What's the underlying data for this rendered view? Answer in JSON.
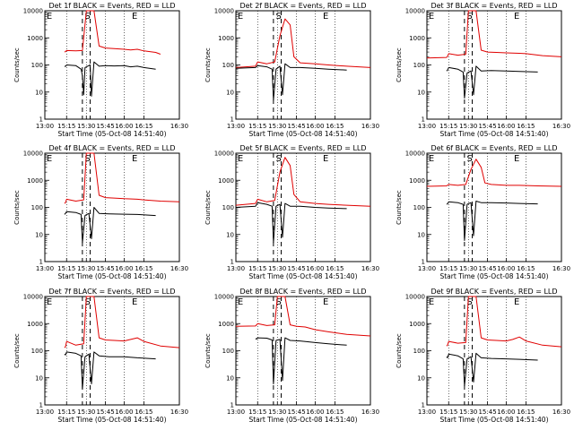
{
  "figure": {
    "background": "#ffffff",
    "axis_color": "#000000",
    "events_color": "#000000",
    "lld_color": "#e00000"
  },
  "chart_data": [
    {
      "type": "line",
      "title": "Det 1f BLACK = Events, RED = LLD",
      "xlabel": "Start Time (05-Oct-08 14:51:40)",
      "ylabel": "Counts/sec",
      "xlim": [
        "13:00",
        "16:30"
      ],
      "ylim": [
        1,
        10000
      ],
      "yscale": "log",
      "x_ticks": [
        "13:00",
        "15:15",
        "15:30",
        "15:45",
        "16:00",
        "16:15",
        "16:30"
      ],
      "y_ticks": [
        "1",
        "10",
        "100",
        "1000",
        "10000"
      ],
      "markers": [
        "E",
        "S",
        "E"
      ],
      "series": [
        {
          "name": "LLD",
          "x": [
            "15:02",
            "15:08",
            "15:15",
            "15:22",
            "15:27",
            "15:30",
            "15:32",
            "15:36",
            "15:40",
            "15:45",
            "15:52",
            "16:00",
            "16:05",
            "16:10",
            "16:15",
            "16:20",
            "16:22"
          ],
          "values": [
            300,
            310,
            340,
            330,
            340,
            10000,
            10000,
            10000,
            500,
            420,
            400,
            380,
            360,
            380,
            330,
            290,
            250
          ]
        },
        {
          "name": "Events",
          "x": [
            "15:02",
            "15:08",
            "15:15",
            "15:22",
            "15:26",
            "15:27",
            "15:28",
            "15:29",
            "15:31",
            "15:33",
            "15:34",
            "15:36",
            "15:40",
            "15:45",
            "15:52",
            "16:00",
            "16:05",
            "16:10",
            "16:15",
            "16:20"
          ],
          "values": [
            90,
            88,
            100,
            95,
            70,
            40,
            8,
            80,
            90,
            100,
            7,
            130,
            90,
            95,
            92,
            95,
            85,
            90,
            80,
            70
          ]
        }
      ]
    },
    {
      "type": "line",
      "title": "Det 2f BLACK = Events, RED = LLD",
      "xlabel": "Start Time (05-Oct-08 14:51:40)",
      "ylabel": "Counts/sec",
      "xlim": [
        "13:00",
        "16:30"
      ],
      "ylim": [
        1,
        10000
      ],
      "yscale": "log",
      "x_ticks": [
        "13:00",
        "15:15",
        "15:30",
        "15:45",
        "16:00",
        "16:15",
        "16:30"
      ],
      "y_ticks": [
        "1",
        "10",
        "100",
        "1000",
        "10000"
      ],
      "markers": [
        "E",
        "S",
        "E"
      ],
      "series": [
        {
          "name": "LLD",
          "x": [
            "13:00",
            "15:02",
            "15:15",
            "15:22",
            "15:28",
            "15:32",
            "15:36",
            "15:40",
            "15:43",
            "15:48",
            "16:00",
            "16:10",
            "16:20",
            "16:30"
          ],
          "values": [
            80,
            90,
            130,
            110,
            130,
            1200,
            5000,
            3000,
            200,
            120,
            110,
            100,
            90,
            80
          ]
        },
        {
          "name": "Events",
          "x": [
            "13:00",
            "15:02",
            "15:15",
            "15:22",
            "15:26",
            "15:27",
            "15:29",
            "15:32",
            "15:34",
            "15:36",
            "15:40",
            "15:48",
            "16:00",
            "16:10",
            "16:20"
          ],
          "values": [
            75,
            80,
            95,
            85,
            70,
            5,
            70,
            90,
            8,
            110,
            80,
            80,
            75,
            70,
            65
          ]
        }
      ]
    },
    {
      "type": "line",
      "title": "Det 3f BLACK = Events, RED = LLD",
      "xlabel": "Start Time (05-Oct-08 14:51:40)",
      "ylabel": "Counts/sec",
      "xlim": [
        "13:00",
        "16:30"
      ],
      "ylim": [
        1,
        10000
      ],
      "yscale": "log",
      "x_ticks": [
        "13:00",
        "15:15",
        "15:30",
        "15:45",
        "16:00",
        "16:15",
        "16:30"
      ],
      "y_ticks": [
        "1",
        "10",
        "100",
        "1000",
        "10000"
      ],
      "markers": [
        "E",
        "S",
        "E"
      ],
      "series": [
        {
          "name": "LLD",
          "x": [
            "13:00",
            "15:02",
            "15:08",
            "15:15",
            "15:22",
            "15:28",
            "15:30",
            "15:36",
            "15:40",
            "15:45",
            "15:52",
            "16:00",
            "16:10",
            "16:15",
            "16:22",
            "16:30"
          ],
          "values": [
            180,
            190,
            210,
            260,
            230,
            250,
            10000,
            10000,
            350,
            300,
            290,
            280,
            270,
            260,
            220,
            200
          ]
        },
        {
          "name": "Events",
          "x": [
            "15:02",
            "15:08",
            "15:15",
            "15:22",
            "15:26",
            "15:27",
            "15:29",
            "15:32",
            "15:34",
            "15:36",
            "15:40",
            "15:48",
            "16:00",
            "16:10",
            "16:20"
          ],
          "values": [
            60,
            65,
            80,
            70,
            55,
            6,
            50,
            60,
            8,
            90,
            60,
            62,
            60,
            58,
            55
          ]
        }
      ]
    },
    {
      "type": "line",
      "title": "Det 4f BLACK = Events, RED = LLD",
      "xlabel": "Start Time (05-Oct-08 14:51:40)",
      "ylabel": "Counts/sec",
      "xlim": [
        "13:00",
        "16:30"
      ],
      "ylim": [
        1,
        10000
      ],
      "yscale": "log",
      "x_ticks": [
        "13:00",
        "15:15",
        "15:30",
        "15:45",
        "16:00",
        "16:15",
        "16:30"
      ],
      "y_ticks": [
        "1",
        "10",
        "100",
        "1000",
        "10000"
      ],
      "markers": [
        "E",
        "S",
        "E"
      ],
      "series": [
        {
          "name": "LLD",
          "x": [
            "15:02",
            "15:08",
            "15:15",
            "15:22",
            "15:28",
            "15:30",
            "15:36",
            "15:40",
            "15:45",
            "15:52",
            "16:00",
            "16:10",
            "16:15",
            "16:22",
            "16:30"
          ],
          "values": [
            140,
            150,
            200,
            170,
            190,
            10000,
            10000,
            280,
            230,
            220,
            210,
            200,
            190,
            170,
            160
          ]
        },
        {
          "name": "Events",
          "x": [
            "15:02",
            "15:08",
            "15:15",
            "15:22",
            "15:26",
            "15:27",
            "15:29",
            "15:32",
            "15:34",
            "15:36",
            "15:40",
            "15:48",
            "16:00",
            "16:10",
            "16:20"
          ],
          "values": [
            55,
            60,
            70,
            65,
            55,
            5,
            50,
            60,
            7,
            100,
            60,
            58,
            56,
            55,
            50
          ]
        }
      ]
    },
    {
      "type": "line",
      "title": "Det 5f BLACK = Events, RED = LLD",
      "xlabel": "Start Time (05-Oct-08 14:51:40)",
      "ylabel": "Counts/sec",
      "xlim": [
        "13:00",
        "16:30"
      ],
      "ylim": [
        1,
        10000
      ],
      "yscale": "log",
      "x_ticks": [
        "13:00",
        "15:15",
        "15:30",
        "15:45",
        "16:00",
        "16:15",
        "16:30"
      ],
      "y_ticks": [
        "1",
        "10",
        "100",
        "1000",
        "10000"
      ],
      "markers": [
        "E",
        "S",
        "E"
      ],
      "series": [
        {
          "name": "LLD",
          "x": [
            "13:00",
            "15:02",
            "15:15",
            "15:22",
            "15:28",
            "15:32",
            "15:36",
            "15:40",
            "15:43",
            "15:48",
            "16:00",
            "16:10",
            "16:20",
            "16:30"
          ],
          "values": [
            120,
            140,
            200,
            160,
            180,
            2000,
            7000,
            3500,
            300,
            160,
            140,
            130,
            120,
            110
          ]
        },
        {
          "name": "Events",
          "x": [
            "13:00",
            "15:02",
            "15:15",
            "15:22",
            "15:26",
            "15:27",
            "15:29",
            "15:32",
            "15:34",
            "15:36",
            "15:40",
            "15:48",
            "16:00",
            "16:10",
            "16:20"
          ],
          "values": [
            100,
            110,
            150,
            130,
            110,
            5,
            110,
            130,
            8,
            140,
            110,
            110,
            100,
            95,
            90
          ]
        }
      ]
    },
    {
      "type": "line",
      "title": "Det 6f BLACK = Events, RED = LLD",
      "xlabel": "Start Time (05-Oct-08 14:51:40)",
      "ylabel": "Counts/sec",
      "xlim": [
        "13:00",
        "16:30"
      ],
      "ylim": [
        1,
        10000
      ],
      "yscale": "log",
      "x_ticks": [
        "13:00",
        "15:15",
        "15:30",
        "15:45",
        "16:00",
        "16:15",
        "16:30"
      ],
      "y_ticks": [
        "1",
        "10",
        "100",
        "1000",
        "10000"
      ],
      "markers": [
        "E",
        "S",
        "E"
      ],
      "series": [
        {
          "name": "LLD",
          "x": [
            "13:00",
            "15:02",
            "15:15",
            "15:22",
            "15:28",
            "15:32",
            "15:36",
            "15:40",
            "15:43",
            "15:48",
            "16:00",
            "16:10",
            "16:20",
            "16:30"
          ],
          "values": [
            600,
            620,
            700,
            650,
            700,
            2500,
            6000,
            3000,
            800,
            700,
            650,
            650,
            620,
            600
          ]
        },
        {
          "name": "Events",
          "x": [
            "15:02",
            "15:08",
            "15:15",
            "15:22",
            "15:26",
            "15:27",
            "15:29",
            "15:32",
            "15:34",
            "15:36",
            "15:40",
            "15:48",
            "16:00",
            "16:10",
            "16:20"
          ],
          "values": [
            130,
            135,
            160,
            150,
            130,
            6,
            130,
            150,
            9,
            170,
            150,
            150,
            145,
            140,
            135
          ]
        }
      ]
    },
    {
      "type": "line",
      "title": "Det 7f BLACK = Events, RED = LLD",
      "xlabel": "Start Time (05-Oct-08 14:51:40)",
      "ylabel": "Counts/sec",
      "xlim": [
        "13:00",
        "16:30"
      ],
      "ylim": [
        1,
        10000
      ],
      "yscale": "log",
      "x_ticks": [
        "13:00",
        "15:15",
        "15:30",
        "15:45",
        "16:00",
        "16:15",
        "16:30"
      ],
      "y_ticks": [
        "1",
        "10",
        "100",
        "1000",
        "10000"
      ],
      "markers": [
        "E",
        "S",
        "E"
      ],
      "series": [
        {
          "name": "LLD",
          "x": [
            "15:02",
            "15:08",
            "15:15",
            "15:22",
            "15:28",
            "15:30",
            "15:36",
            "15:40",
            "15:45",
            "15:52",
            "16:00",
            "16:05",
            "16:10",
            "16:15",
            "16:22",
            "16:30"
          ],
          "values": [
            130,
            140,
            220,
            160,
            180,
            10000,
            10000,
            300,
            250,
            240,
            230,
            260,
            300,
            220,
            150,
            130
          ]
        },
        {
          "name": "Events",
          "x": [
            "15:02",
            "15:08",
            "15:15",
            "15:22",
            "15:26",
            "15:27",
            "15:29",
            "15:32",
            "15:34",
            "15:36",
            "15:40",
            "15:48",
            "16:00",
            "16:10",
            "16:20"
          ],
          "values": [
            75,
            70,
            90,
            80,
            65,
            4,
            60,
            75,
            6,
            90,
            65,
            60,
            60,
            55,
            50
          ]
        }
      ]
    },
    {
      "type": "line",
      "title": "Det 8f BLACK = Events, RED = LLD",
      "xlabel": "Start Time (05-Oct-08 14:51:40)",
      "ylabel": "Counts/sec",
      "xlim": [
        "13:00",
        "16:30"
      ],
      "ylim": [
        1,
        10000
      ],
      "yscale": "log",
      "x_ticks": [
        "13:00",
        "15:15",
        "15:30",
        "15:45",
        "16:00",
        "16:15",
        "16:30"
      ],
      "y_ticks": [
        "1",
        "10",
        "100",
        "1000",
        "10000"
      ],
      "markers": [
        "E",
        "S",
        "E"
      ],
      "series": [
        {
          "name": "LLD",
          "x": [
            "13:00",
            "15:02",
            "15:15",
            "15:22",
            "15:28",
            "15:30",
            "15:36",
            "15:40",
            "15:45",
            "15:52",
            "16:00",
            "16:10",
            "16:20",
            "16:30"
          ],
          "values": [
            800,
            820,
            1000,
            850,
            900,
            10000,
            10000,
            900,
            800,
            750,
            600,
            500,
            400,
            350
          ]
        },
        {
          "name": "Events",
          "x": [
            "15:02",
            "15:08",
            "15:15",
            "15:22",
            "15:26",
            "15:27",
            "15:29",
            "15:32",
            "15:34",
            "15:36",
            "15:40",
            "15:48",
            "16:00",
            "16:10",
            "16:20"
          ],
          "values": [
            280,
            270,
            300,
            290,
            250,
            6,
            240,
            260,
            8,
            300,
            240,
            230,
            200,
            180,
            160
          ]
        }
      ]
    },
    {
      "type": "line",
      "title": "Det 9f BLACK = Events, RED = LLD",
      "xlabel": "Start Time (05-Oct-08 14:51:40)",
      "ylabel": "Counts/sec",
      "xlim": [
        "13:00",
        "16:30"
      ],
      "ylim": [
        1,
        10000
      ],
      "yscale": "log",
      "x_ticks": [
        "13:00",
        "15:15",
        "15:30",
        "15:45",
        "16:00",
        "16:15",
        "16:30"
      ],
      "y_ticks": [
        "1",
        "10",
        "100",
        "1000",
        "10000"
      ],
      "markers": [
        "E",
        "S",
        "E"
      ],
      "series": [
        {
          "name": "LLD",
          "x": [
            "15:02",
            "15:08",
            "15:15",
            "15:22",
            "15:28",
            "15:30",
            "15:36",
            "15:40",
            "15:45",
            "15:52",
            "16:00",
            "16:05",
            "16:10",
            "16:15",
            "16:22",
            "16:30"
          ],
          "values": [
            150,
            160,
            220,
            190,
            200,
            10000,
            10000,
            300,
            250,
            240,
            230,
            260,
            320,
            230,
            160,
            140
          ]
        },
        {
          "name": "Events",
          "x": [
            "15:02",
            "15:08",
            "15:15",
            "15:22",
            "15:26",
            "15:27",
            "15:29",
            "15:32",
            "15:34",
            "15:36",
            "15:40",
            "15:48",
            "16:00",
            "16:10",
            "16:20"
          ],
          "values": [
            60,
            55,
            75,
            65,
            50,
            5,
            50,
            60,
            7,
            80,
            55,
            52,
            50,
            48,
            45
          ]
        }
      ]
    }
  ]
}
